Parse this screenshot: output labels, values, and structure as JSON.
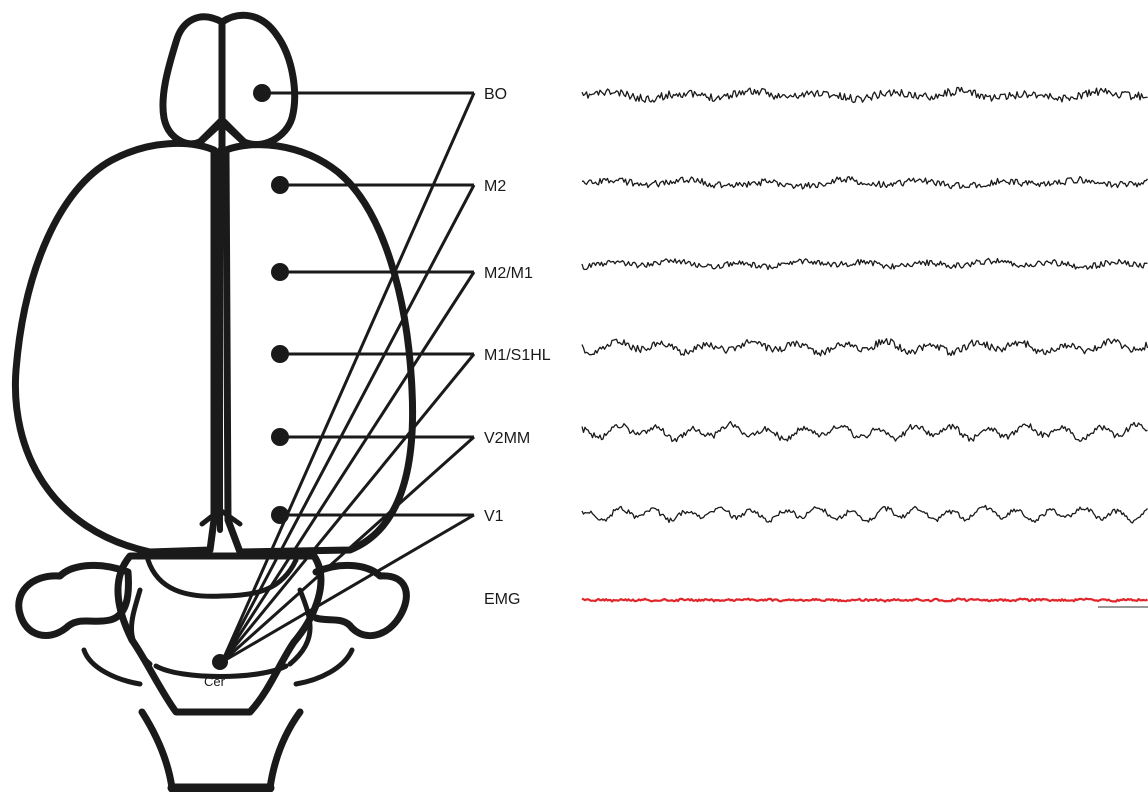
{
  "labels": {
    "bo": "BO",
    "m2": "M2",
    "m2m1": "M2/M1",
    "m1s1hl": "M1/S1HL",
    "v2mm": "V2MM",
    "v1": "V1",
    "emg": "EMG",
    "cer": "Cer"
  },
  "colors": {
    "outline": "#1a1a1a",
    "trace": "#1a1a1a",
    "emg_trace": "#e0262b",
    "scale_bar": "#777777"
  }
}
